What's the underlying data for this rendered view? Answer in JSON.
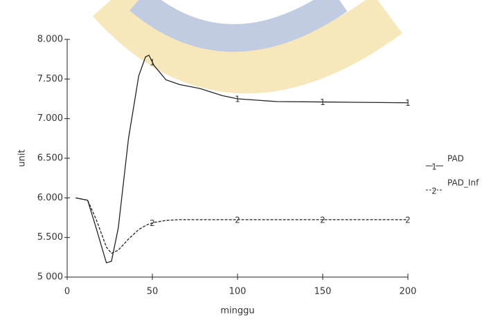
{
  "chart_data": {
    "type": "line",
    "x_label": "minggu",
    "y_label": "unit",
    "x": [
      5,
      12,
      17,
      23,
      26,
      30,
      36,
      42,
      46,
      48,
      51,
      58,
      66,
      78,
      91,
      100,
      123,
      150,
      200
    ],
    "series": [
      {
        "name": "PAD",
        "marker": "1",
        "color": "#222222",
        "dash": false,
        "values": [
          6000,
          5970,
          5620,
          5180,
          5200,
          5620,
          6750,
          7540,
          7780,
          7800,
          7670,
          7490,
          7430,
          7380,
          7290,
          7250,
          7215,
          7210,
          7200
        ]
      },
      {
        "name": "PAD_Inf",
        "marker": "2",
        "color": "#222222",
        "dash": true,
        "values": [
          6000,
          5970,
          5730,
          5380,
          5300,
          5340,
          5480,
          5600,
          5650,
          5670,
          5690,
          5715,
          5725,
          5725,
          5725,
          5725,
          5725,
          5725,
          5725
        ]
      }
    ],
    "xlim": [
      0,
      200
    ],
    "xticks": [
      0,
      50,
      100,
      150,
      200
    ],
    "ylim": [
      5000,
      8000
    ],
    "yticks": [
      {
        "value": 5000,
        "label": "5 000"
      },
      {
        "value": 5500,
        "label": "5.500"
      },
      {
        "value": 6000,
        "label": "6.000"
      },
      {
        "value": 6500,
        "label": "6.500"
      },
      {
        "value": 7000,
        "label": "7.000"
      },
      {
        "value": 7500,
        "label": "7.500"
      },
      {
        "value": 8000,
        "label": "8.000"
      }
    ],
    "legend": "right"
  }
}
